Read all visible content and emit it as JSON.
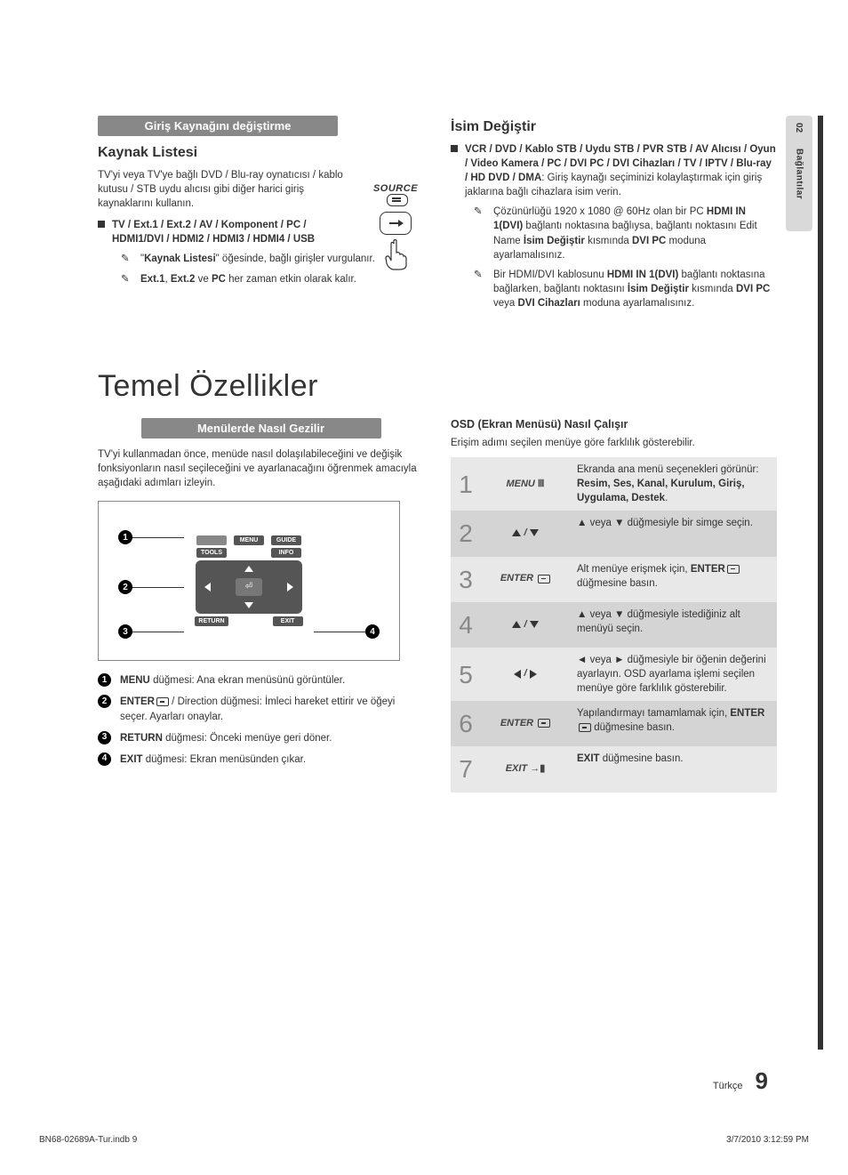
{
  "sideTab": {
    "num": "02",
    "label": "Bağlantılar"
  },
  "left": {
    "bar1": "Giriş Kaynağını değiştirme",
    "head1": "Kaynak Listesi",
    "intro1": "TV'yi veya TV'ye bağlı DVD / Blu-ray oynatıcısı / kablo kutusu / STB uydu alıcısı gibi diğer harici giriş kaynaklarını kullanın.",
    "list1": "TV / Ext.1 / Ext.2 / AV / Komponent / PC / HDMI1/DVI / HDMI2 / HDMI3 / HDMI4 / USB",
    "note1_a": "\"",
    "note1_b": "Kaynak Listesi",
    "note1_c": "\" öğesinde, bağlı girişler vurgulanır.",
    "note2_a": "Ext.1",
    "note2_b": ", ",
    "note2_c": "Ext.2",
    "note2_d": " ve ",
    "note2_e": "PC",
    "note2_f": " her zaman etkin olarak kalır.",
    "sourceLabel": "SOURCE"
  },
  "right": {
    "head": "İsim Değiştir",
    "list_bold": "VCR / DVD / Kablo STB / Uydu STB / PVR STB / AV Alıcısı / Oyun / Video Kamera / PC / DVI PC / DVI Cihazları / TV / IPTV / Blu-ray / HD DVD / DMA",
    "list_body": ": Giriş kaynağı seçiminizi kolaylaştırmak için giriş jaklarına bağlı cihazlara isim verin.",
    "note1_a": "Çözünürlüğü 1920 x 1080 @ 60Hz olan bir PC ",
    "note1_b": "HDMI IN 1(DVI)",
    "note1_c": " bağlantı noktasına bağlıysa, bağlantı noktasını Edit Name ",
    "note1_d": "İsim Değiştir",
    "note1_e": " kısmında ",
    "note1_f": "DVI PC",
    "note1_g": " moduna ayarlamalısınız.",
    "note2_a": "Bir HDMI/DVI kablosunu ",
    "note2_b": "HDMI IN 1(DVI)",
    "note2_c": " bağlantı noktasına bağlarken, bağlantı noktasını ",
    "note2_d": "İsim Değiştir",
    "note2_e": " kısmında ",
    "note2_f": "DVI PC",
    "note2_g": " veya ",
    "note2_h": "DVI Cihazları",
    "note2_i": " moduna ayarlamalısınız."
  },
  "bigHeading": "Temel Özellikler",
  "menus": {
    "bar": "Menülerde Nasıl Gezilir",
    "intro": "TV'yi kullanmadan önce, menüde nasıl dolaşılabileceğini ve değişik fonksiyonların nasıl seçileceğini ve ayarlanacağını öğrenmek amacıyla aşağıdaki adımları izleyin.",
    "remote": {
      "menu": "MENU",
      "guide": "GUIDE",
      "tools": "TOOLS",
      "info": "INFO",
      "return": "RETURN",
      "exit": "EXIT",
      "enter": "⏎"
    },
    "legend": [
      {
        "n": "1",
        "b": "MENU",
        "t": " düğmesi: Ana ekran menüsünü görüntüler."
      },
      {
        "n": "2",
        "b": "ENTER",
        "icon": true,
        "t": " / Direction düğmesi: İmleci hareket ettirir ve öğeyi seçer. Ayarları onaylar."
      },
      {
        "n": "3",
        "b": "RETURN",
        "t": " düğmesi: Önceki menüye geri döner."
      },
      {
        "n": "4",
        "b": "EXIT",
        "t": " düğmesi: Ekran menüsünden çıkar."
      }
    ]
  },
  "osd": {
    "head": "OSD (Ekran Menüsü) Nasıl Çalışır",
    "sub": "Erişim adımı seçilen menüye göre farklılık gösterebilir.",
    "rows": [
      {
        "n": "1",
        "key": "MENU",
        "keyType": "menu",
        "desc_a": "Ekranda ana menü seçenekleri görünür:",
        "desc_b": "Resim, Ses, Kanal, Kurulum, Giriş, Uygulama, Destek",
        "desc_c": "."
      },
      {
        "n": "2",
        "key": "updown",
        "keyType": "arrows",
        "desc_a": "▲ veya ▼ düğmesiyle bir simge seçin."
      },
      {
        "n": "3",
        "key": "ENTER",
        "keyType": "enter",
        "desc_a": "Alt menüye erişmek için, ",
        "desc_b": "ENTER",
        "desc_c": " düğmesine basın."
      },
      {
        "n": "4",
        "key": "updown",
        "keyType": "arrows",
        "desc_a": "▲ veya ▼ düğmesiyle istediğiniz alt menüyü seçin."
      },
      {
        "n": "5",
        "key": "leftright",
        "keyType": "arrows",
        "desc_a": "◄ veya ► düğmesiyle bir öğenin değerini ayarlayın. OSD ayarlama işlemi seçilen menüye göre farklılık gösterebilir."
      },
      {
        "n": "6",
        "key": "ENTER",
        "keyType": "enter",
        "desc_a": "Yapılandırmayı tamamlamak için, ",
        "desc_b": "ENTER",
        "desc_c": " düğmesine basın."
      },
      {
        "n": "7",
        "key": "EXIT",
        "keyType": "exit",
        "desc_a": "",
        "desc_b": "EXIT",
        "desc_c": " düğmesine basın."
      }
    ]
  },
  "footer": {
    "lang": "Türkçe",
    "page": "9"
  },
  "printMeta": {
    "left": "BN68-02689A-Tur.indb   9",
    "right": "3/7/2010   3:12:59 PM"
  }
}
